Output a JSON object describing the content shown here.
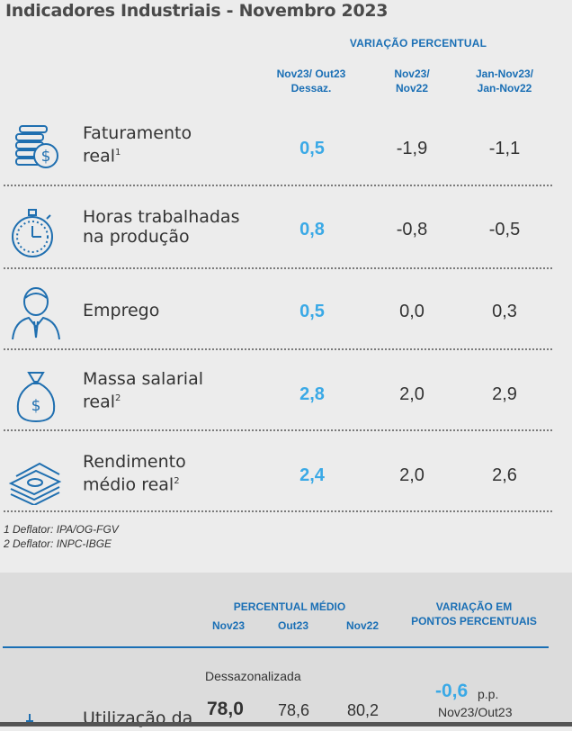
{
  "title": "Indicadores Industriais - Novembro 2023",
  "variation_header": "VARIAÇÃO PERCENTUAL",
  "columns": [
    {
      "line1": "Nov23/ Out23",
      "line2": "Dessaz."
    },
    {
      "line1": "Nov23/",
      "line2": "Nov22"
    },
    {
      "line1": "Jan-Nov23/",
      "line2": "Jan-Nov22"
    }
  ],
  "rows": [
    {
      "icon": "coins-money-icon",
      "label_line1": "Faturamento",
      "label_line2": "real",
      "sup": "1",
      "v1": "0,5",
      "v2": "-1,9",
      "v3": "-1,1"
    },
    {
      "icon": "stopwatch-icon",
      "label_line1": "Horas trabalhadas",
      "label_line2": "na produção",
      "sup": "",
      "v1": "0,8",
      "v2": "-0,8",
      "v3": "-0,5"
    },
    {
      "icon": "employee-icon",
      "label_line1": "Emprego",
      "label_line2": "",
      "sup": "",
      "v1": "0,5",
      "v2": "0,0",
      "v3": "0,3"
    },
    {
      "icon": "money-bag-icon",
      "label_line1": "Massa salarial",
      "label_line2": "real",
      "sup": "2",
      "v1": "2,8",
      "v2": "2,0",
      "v3": "2,9"
    },
    {
      "icon": "cash-stack-icon",
      "label_line1": "Rendimento",
      "label_line2": "médio real",
      "sup": "2",
      "v1": "2,4",
      "v2": "2,0",
      "v3": "2,6"
    }
  ],
  "notes": [
    "1 Deflator: IPA/OG-FGV",
    "2 Deflator: INPC-IBGE"
  ],
  "panel": {
    "avg_header": "PERCENTUAL MÉDIO",
    "avg_cols": [
      "Nov23",
      "Out23",
      "Nov22"
    ],
    "var_header_line1": "VARIAÇÃO EM",
    "var_header_line2": "PONTOS PERCENTUAIS",
    "seasonal_label": "Dessazonalizada",
    "row_label": "Utilização da",
    "values": [
      "78,0",
      "78,6",
      "80,2"
    ],
    "pp_value": "-0,6",
    "pp_unit": "p.p.",
    "pp_period": "Nov23/Out23"
  },
  "colors": {
    "accent": "#1a6fb5",
    "highlight": "#3aa9e6",
    "icon_stroke": "#1f6fb0"
  }
}
